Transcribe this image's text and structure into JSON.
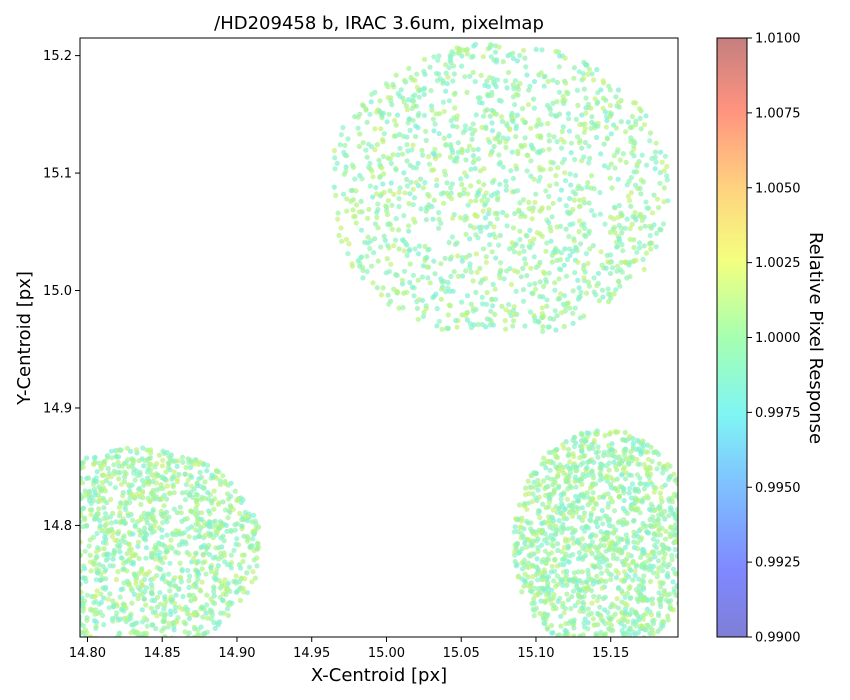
{
  "chart_data": {
    "type": "scatter",
    "title": "/HD209458 b, IRAC 3.6um, pixelmap",
    "xlabel": "X-Centroid [px]",
    "ylabel": "Y-Centroid [px]",
    "xlim": [
      14.795,
      15.195
    ],
    "ylim": [
      14.705,
      15.215
    ],
    "xticks": [
      14.8,
      14.85,
      14.9,
      14.95,
      15.0,
      15.05,
      15.1,
      15.15
    ],
    "xtick_labels": [
      "14.80",
      "14.85",
      "14.90",
      "14.95",
      "15.00",
      "15.05",
      "15.10",
      "15.15"
    ],
    "yticks": [
      14.8,
      14.9,
      15.0,
      15.1,
      15.2
    ],
    "ytick_labels": [
      "14.8",
      "14.9",
      "15.0",
      "15.1",
      "15.2"
    ],
    "grid": false,
    "colormap": "jet",
    "clusters": [
      {
        "center_x": 15.075,
        "center_y": 15.085,
        "extent_x": [
          14.975,
          15.195
        ],
        "extent_y": [
          14.975,
          15.215
        ]
      },
      {
        "center_x": 14.835,
        "center_y": 14.78,
        "extent_x": [
          14.795,
          14.95
        ],
        "extent_y": [
          14.705,
          14.87
        ]
      },
      {
        "center_x": 15.145,
        "center_y": 14.785,
        "extent_x": [
          15.08,
          15.195
        ],
        "extent_y": [
          14.705,
          14.89
        ]
      }
    ],
    "colorbar": {
      "label": "Relative Pixel Response",
      "min": 0.99,
      "max": 1.01,
      "ticks": [
        0.99,
        0.9925,
        0.995,
        0.9975,
        1.0,
        1.0025,
        1.005,
        1.0075,
        1.01
      ],
      "tick_labels": [
        "0.9900",
        "0.9925",
        "0.9950",
        "0.9975",
        "1.0000",
        "1.0025",
        "1.0050",
        "1.0075",
        "1.0100"
      ]
    }
  }
}
